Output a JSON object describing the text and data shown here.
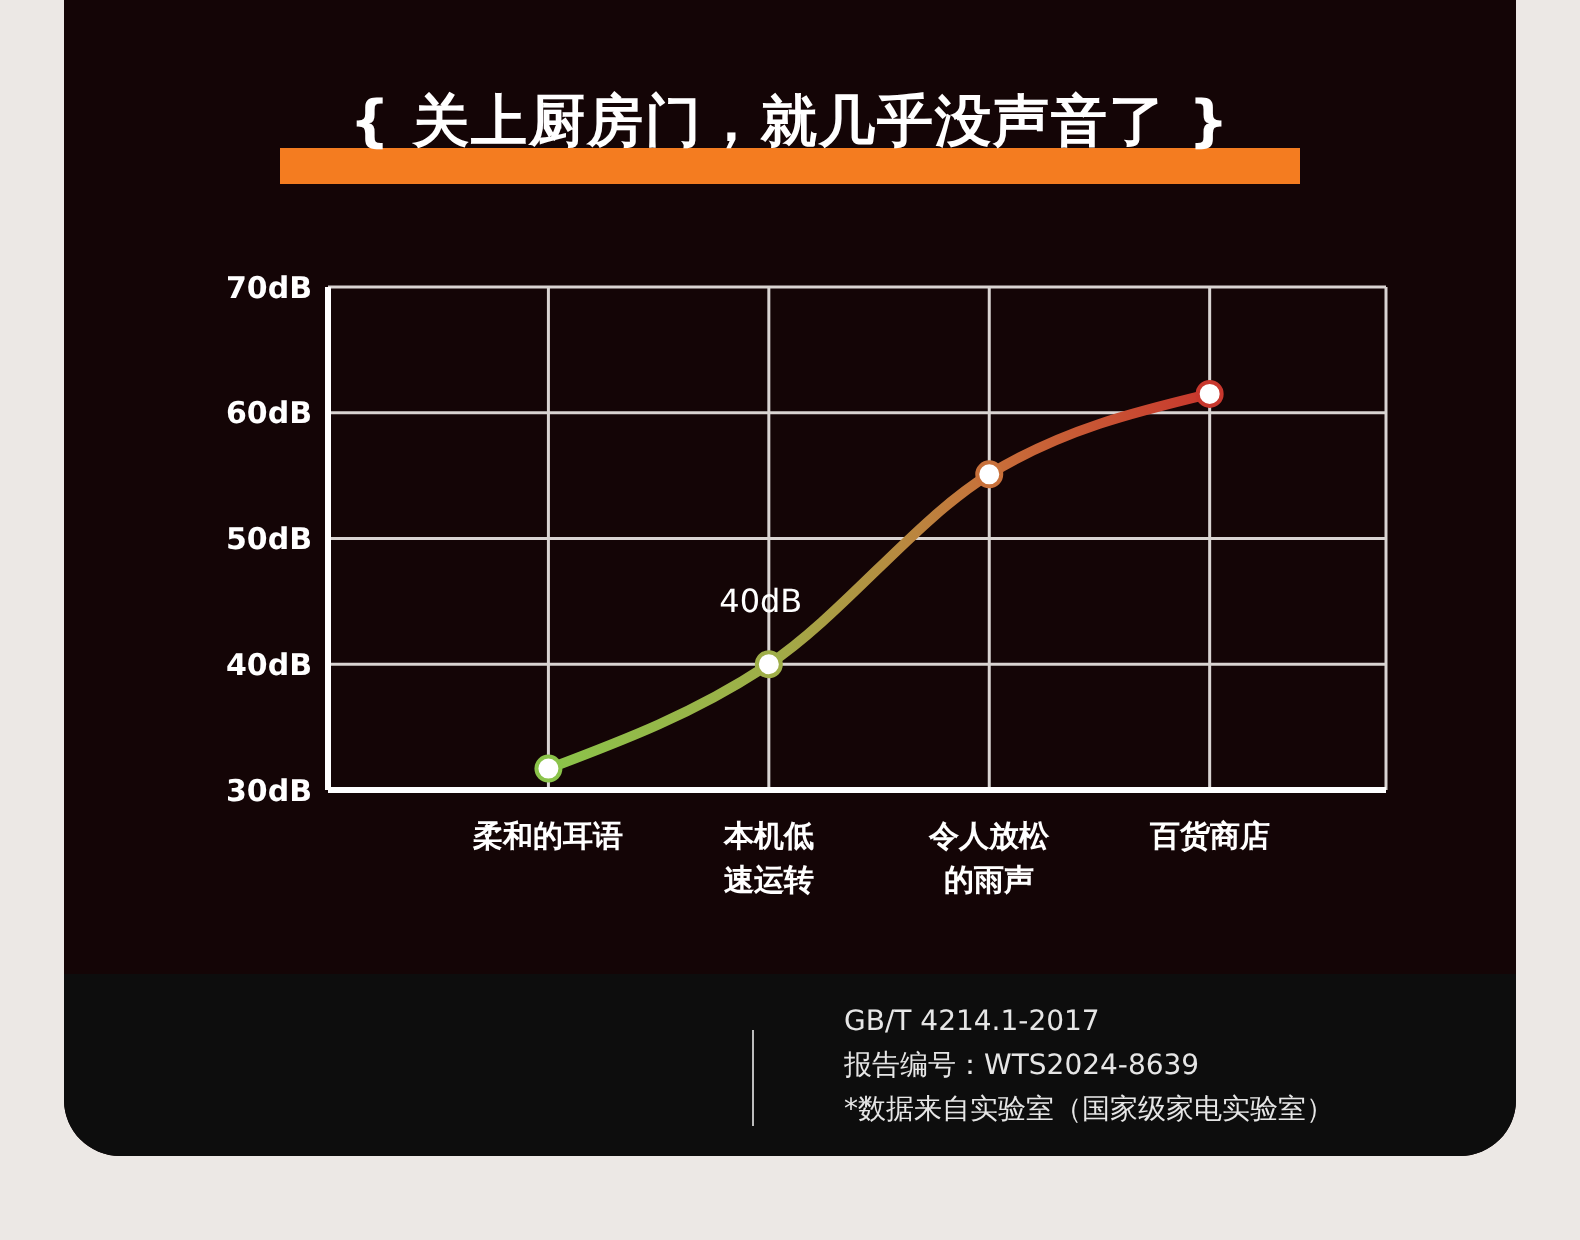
{
  "chart_data": {
    "type": "line",
    "title": "{ 关上厨房门，就几乎没声音了 }",
    "categories": [
      "柔和的耳语",
      "本机低速运转",
      "令人放松的雨声",
      "百货商店"
    ],
    "series": [
      {
        "values": [
          31.7,
          40,
          55.1,
          61.5
        ],
        "colors": [
          "#8bc34a",
          "#9fae48",
          "#c8703a",
          "#c8372d"
        ],
        "value_labels": [
          null,
          "40dB",
          null,
          null
        ]
      }
    ],
    "ylim": [
      30,
      70
    ],
    "yticks": [
      {
        "value": 30,
        "label": "30dB"
      },
      {
        "value": 40,
        "label": "40dB"
      },
      {
        "value": 50,
        "label": "50dB"
      },
      {
        "value": 60,
        "label": "60dB"
      },
      {
        "value": 70,
        "label": "70dB"
      }
    ],
    "grid": true,
    "marker": "circle",
    "line_style": "solid",
    "annotations": [
      "GB/T 4214.1-2017",
      "报告编号：WTS2024-8639",
      "*数据来自实验室（国家级家电实验室）"
    ]
  }
}
